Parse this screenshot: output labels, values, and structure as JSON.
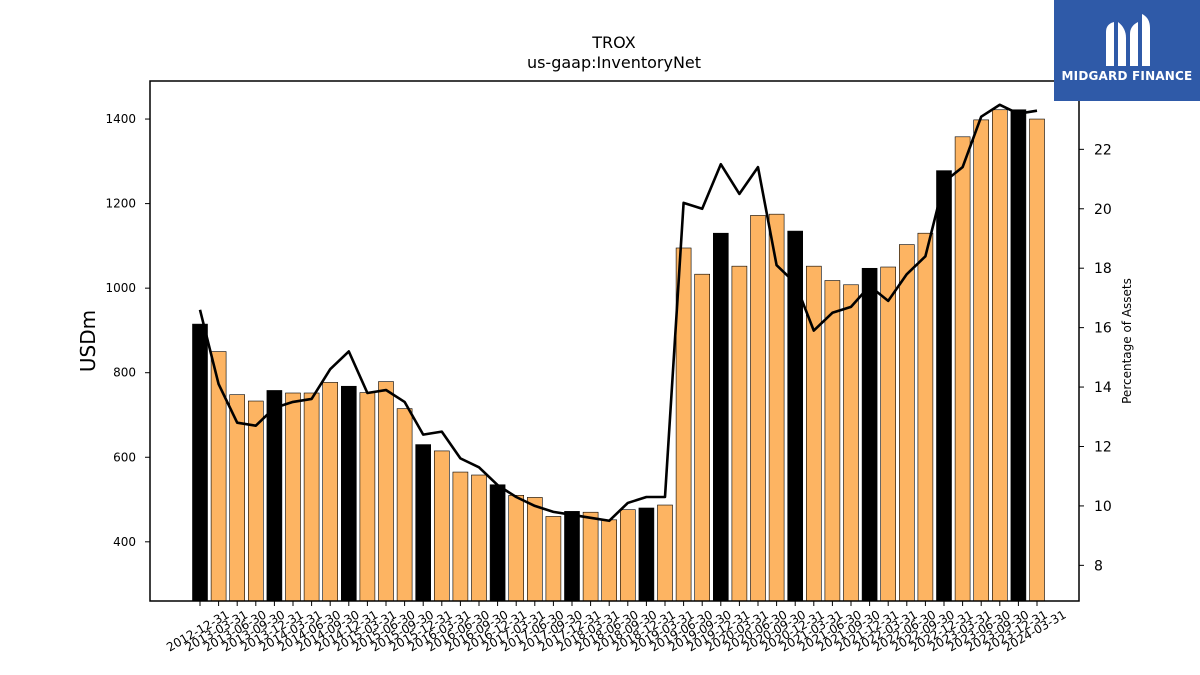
{
  "chart_data": {
    "type": "bar",
    "title": "TROX",
    "subtitle": "us-gaap:InventoryNet",
    "ylabel": "USDm",
    "y2label": "Percentage of Assets",
    "ylim": [
      260,
      1490
    ],
    "y2lim": [
      6.8,
      24.3
    ],
    "yticks": [
      400,
      600,
      800,
      1000,
      1200,
      1400
    ],
    "y2ticks": [
      8,
      10,
      12,
      14,
      16,
      18,
      20,
      22
    ],
    "highlight_color": "#000000",
    "bar_color": "#fdb462",
    "line_color": "#000000",
    "categories": [
      "2012-12-31",
      "2013-03-31",
      "2013-06-30",
      "2013-09-30",
      "2013-12-31",
      "2014-03-31",
      "2014-06-30",
      "2014-09-30",
      "2014-12-31",
      "2015-03-31",
      "2015-06-30",
      "2015-09-30",
      "2015-12-31",
      "2016-03-31",
      "2016-06-30",
      "2016-09-30",
      "2016-12-31",
      "2017-03-31",
      "2017-06-30",
      "2017-09-30",
      "2017-12-31",
      "2018-03-31",
      "2018-06-30",
      "2018-09-30",
      "2018-12-31",
      "2019-03-31",
      "2019-06-30",
      "2019-09-30",
      "2019-12-31",
      "2020-03-31",
      "2020-06-30",
      "2020-09-30",
      "2020-12-31",
      "2021-03-31",
      "2021-06-30",
      "2021-09-30",
      "2021-12-31",
      "2022-03-31",
      "2022-06-30",
      "2022-09-30",
      "2022-12-31",
      "2023-03-31",
      "2023-06-30",
      "2023-09-30",
      "2023-12-31",
      "2024-03-31"
    ],
    "values": [
      915,
      850,
      748,
      733,
      758,
      752,
      752,
      777,
      768,
      753,
      779,
      715,
      630,
      615,
      565,
      558,
      535,
      510,
      505,
      460,
      472,
      470,
      452,
      476,
      480,
      487,
      1095,
      1033,
      1130,
      1052,
      1172,
      1175,
      1135,
      1052,
      1018,
      1008,
      1047,
      1050,
      1103,
      1130,
      1278,
      1358,
      1398,
      1422,
      1422,
      1400
    ],
    "highlight": [
      true,
      false,
      false,
      false,
      true,
      false,
      false,
      false,
      true,
      false,
      false,
      false,
      true,
      false,
      false,
      false,
      true,
      false,
      false,
      false,
      true,
      false,
      false,
      false,
      true,
      false,
      false,
      false,
      true,
      false,
      false,
      false,
      true,
      false,
      false,
      false,
      true,
      false,
      false,
      false,
      true,
      false,
      false,
      false,
      true,
      false
    ],
    "pct_assets": [
      16.6,
      14.1,
      12.8,
      12.7,
      13.3,
      13.5,
      13.6,
      14.6,
      15.2,
      13.8,
      13.9,
      13.5,
      12.4,
      12.5,
      11.6,
      11.3,
      10.7,
      10.3,
      10.0,
      9.8,
      9.7,
      9.6,
      9.5,
      10.1,
      10.3,
      10.3,
      20.2,
      20.0,
      21.5,
      20.5,
      21.4,
      18.1,
      17.5,
      15.9,
      16.5,
      16.7,
      17.4,
      16.9,
      17.8,
      18.4,
      20.9,
      21.4,
      23.1,
      23.5,
      23.2,
      23.3
    ]
  },
  "logo": {
    "text": "MIDGARD FINANCE",
    "color": "#2f5aa8"
  }
}
